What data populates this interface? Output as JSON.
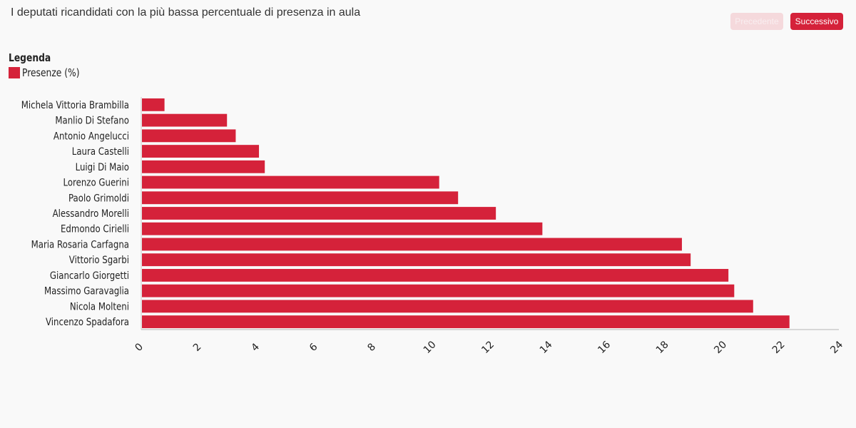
{
  "header": {
    "title": "I deputati ricandidati con la più bassa percentuale di presenza in aula",
    "prev_label": "Precedente",
    "next_label": "Successivo"
  },
  "legend": {
    "title": "Legenda",
    "items": [
      {
        "label": "Presenze (%)",
        "color": "#d5223a"
      }
    ]
  },
  "chart_data": {
    "type": "bar",
    "orientation": "horizontal",
    "categories": [
      "Michela Vittoria Brambilla",
      "Manlio Di Stefano",
      "Antonio Angelucci",
      "Laura Castelli",
      "Luigi Di Maio",
      "Lorenzo Guerini",
      "Paolo Grimoldi",
      "Alessandro Morelli",
      "Edmondo Cirielli",
      "Maria Rosaria Carfagna",
      "Vittorio Sgarbi",
      "Giancarlo Giorgetti",
      "Massimo Garavaglia",
      "Nicola Molteni",
      "Vincenzo Spadafora"
    ],
    "series": [
      {
        "name": "Presenze (%)",
        "color": "#d5223a",
        "values": [
          0.8,
          2.95,
          3.25,
          4.05,
          4.25,
          10.25,
          10.9,
          12.2,
          13.8,
          18.6,
          18.9,
          20.2,
          20.4,
          21.05,
          22.3
        ]
      }
    ],
    "xlim": [
      0,
      24
    ],
    "xticks": [
      0,
      2,
      4,
      6,
      8,
      10,
      12,
      14,
      16,
      18,
      20,
      22,
      24
    ],
    "xlabel": "",
    "ylabel": "",
    "grid": false,
    "legend_position": "top-left"
  }
}
